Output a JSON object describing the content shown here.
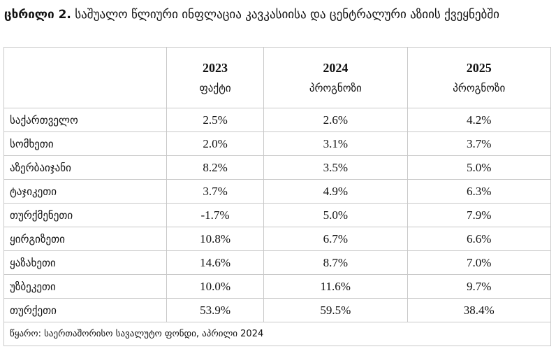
{
  "title": {
    "label": "ცხრილი 2.",
    "text": "საშუალო წლიური ინფლაცია კავკასიისა და ცენტრალური აზიის ქვეყნებში"
  },
  "columns": [
    {
      "year": "2023",
      "type": "ფაქტი"
    },
    {
      "year": "2024",
      "type": "პროგნოზი"
    },
    {
      "year": "2025",
      "type": "პროგნოზი"
    }
  ],
  "rows": [
    {
      "country": "საქართველო",
      "values": [
        "2.5%",
        "2.6%",
        "4.2%"
      ]
    },
    {
      "country": "სომხეთი",
      "values": [
        "2.0%",
        "3.1%",
        "3.7%"
      ]
    },
    {
      "country": "აზერბაიჯანი",
      "values": [
        "8.2%",
        "3.5%",
        "5.0%"
      ]
    },
    {
      "country": "ტაჯიკეთი",
      "values": [
        "3.7%",
        "4.9%",
        "6.3%"
      ]
    },
    {
      "country": "თურქმენეთი",
      "values": [
        "-1.7%",
        "5.0%",
        "7.9%"
      ]
    },
    {
      "country": "ყირგიზეთი",
      "values": [
        "10.8%",
        "6.7%",
        "6.6%"
      ]
    },
    {
      "country": "ყაზახეთი",
      "values": [
        "14.6%",
        "8.7%",
        "7.0%"
      ]
    },
    {
      "country": "უზბეკეთი",
      "values": [
        "10.0%",
        "11.6%",
        "9.7%"
      ]
    },
    {
      "country": "თურქეთი",
      "values": [
        "53.9%",
        "59.5%",
        "38.4%"
      ]
    }
  ],
  "source": "წყარო: საერთაშორისო სავალუტო ფონდი, აპრილი 2024"
}
